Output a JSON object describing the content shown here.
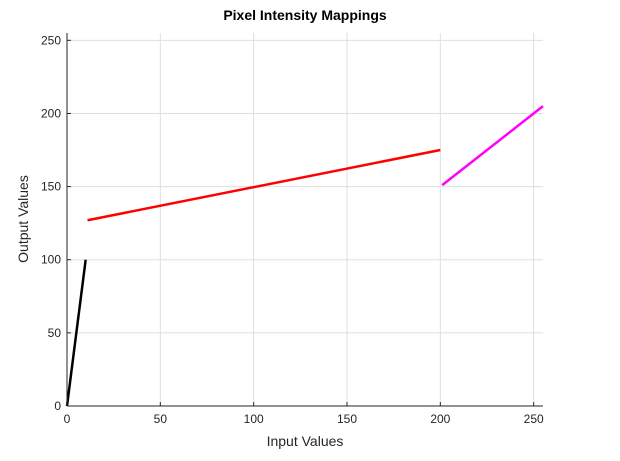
{
  "chart_data": {
    "type": "line",
    "title": "Pixel Intensity Mappings",
    "xlabel": "Input Values",
    "ylabel": "Output Values",
    "xlim": [
      0,
      255
    ],
    "ylim": [
      0,
      255
    ],
    "xticks": [
      0,
      50,
      100,
      150,
      200,
      250
    ],
    "yticks": [
      0,
      50,
      100,
      150,
      200,
      250
    ],
    "grid": true,
    "series": [
      {
        "color": "#000000",
        "x": [
          0,
          10
        ],
        "y": [
          0,
          100
        ]
      },
      {
        "color": "#ff0000",
        "x": [
          11,
          200
        ],
        "y": [
          127,
          175
        ]
      },
      {
        "color": "#ff00ff",
        "x": [
          201,
          255
        ],
        "y": [
          151,
          205
        ]
      }
    ]
  }
}
